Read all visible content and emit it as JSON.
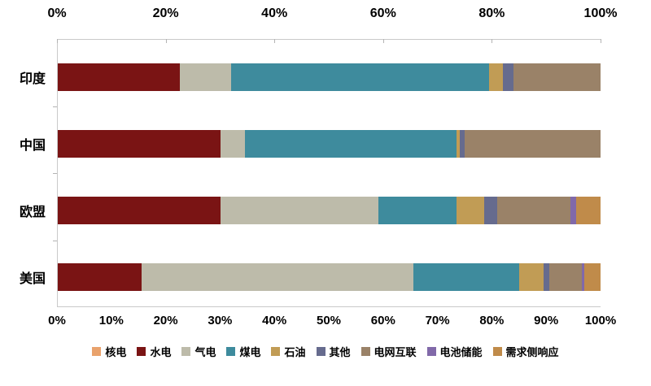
{
  "chart_data": {
    "type": "bar",
    "orientation": "horizontal",
    "stacked": true,
    "title": "",
    "categories": [
      "印度",
      "中国",
      "欧盟",
      "美国"
    ],
    "series": [
      {
        "name": "核电",
        "color": "#e9a26c",
        "values": [
          0,
          0,
          0,
          0
        ]
      },
      {
        "name": "水电",
        "color": "#7a1414",
        "values": [
          22.5,
          30,
          30,
          15.5
        ]
      },
      {
        "name": "气电",
        "color": "#bdbbaa",
        "values": [
          9.5,
          4.5,
          29,
          50
        ]
      },
      {
        "name": "煤电",
        "color": "#3e8b9d",
        "values": [
          47.5,
          39,
          14.5,
          19.5
        ]
      },
      {
        "name": "石油",
        "color": "#c19c55",
        "values": [
          2.5,
          0.5,
          5,
          4.5
        ]
      },
      {
        "name": "其他",
        "color": "#666b8e",
        "values": [
          2,
          1,
          2.5,
          1
        ]
      },
      {
        "name": "电网互联",
        "color": "#9a8268",
        "values": [
          16,
          25,
          13.5,
          6
        ]
      },
      {
        "name": "电池储能",
        "color": "#8169a9",
        "values": [
          0,
          0,
          1,
          0.5
        ]
      },
      {
        "name": "需求侧响应",
        "color": "#c08b4a",
        "values": [
          0,
          0,
          4.5,
          3
        ]
      }
    ],
    "top_axis": {
      "min": 0,
      "max": 100,
      "ticks": [
        "0%",
        "20%",
        "40%",
        "60%",
        "80%",
        "100%"
      ]
    },
    "bottom_axis": {
      "min": 0,
      "max": 100,
      "ticks": [
        "0%",
        "10%",
        "20%",
        "30%",
        "40%",
        "50%",
        "60%",
        "70%",
        "80%",
        "90%",
        "100%"
      ]
    },
    "grid": false,
    "legend_position": "bottom",
    "axis_line_color": "#c9c9c9",
    "text_color": "#000000",
    "background_color": "#ffffff"
  }
}
